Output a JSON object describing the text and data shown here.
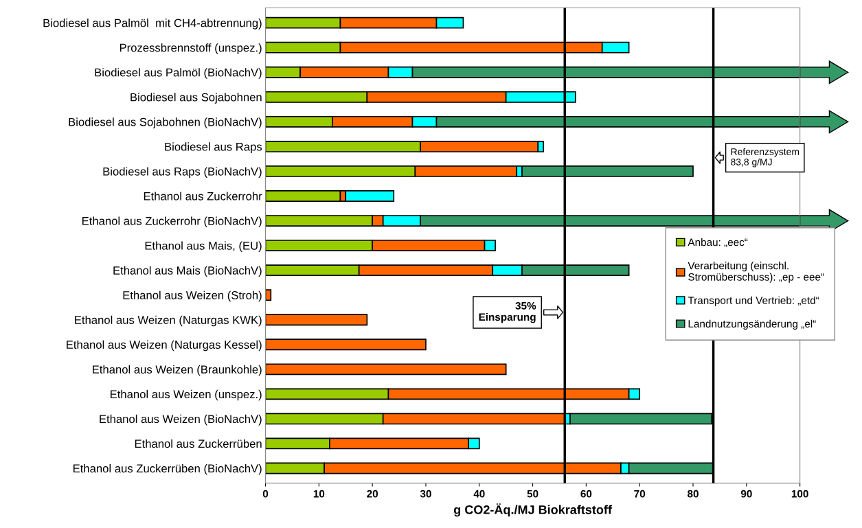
{
  "chart_data": {
    "type": "bar",
    "orientation": "horizontal",
    "stacked": true,
    "xlabel": "g CO2-Äq./MJ Biokraftstoff",
    "categories": [
      "Biodiesel aus Palmöl  mit CH4-abtrennung)",
      "Prozessbrennstoff (unspez.)",
      "Biodiesel aus Palmöl (BioNachV)",
      "Biodiesel aus Sojabohnen",
      "Biodiesel aus Sojabohnen (BioNachV)",
      "Biodiesel aus Raps",
      "Biodiesel aus Raps (BioNachV)",
      "Ethanol aus Zuckerrohr",
      "Ethanol aus Zuckerrohr (BioNachV)",
      "Ethanol aus Mais, (EU)",
      "Ethanol aus Mais (BioNachV)",
      "Ethanol aus Weizen (Stroh)",
      "Ethanol aus Weizen (Naturgas KWK)",
      "Ethanol aus Weizen (Naturgas Kessel)",
      "Ethanol aus Weizen (Braunkohle)",
      "Ethanol aus Weizen (unspez.)",
      "Ethanol aus Weizen (BioNachV)",
      "Ethanol aus Zuckerrüben",
      "Ethanol aus Zuckerrüben (BioNachV)"
    ],
    "series": [
      {
        "name": "Anbau: „eec“",
        "color": "#99cc00",
        "values": [
          14,
          14,
          6.5,
          19,
          12.5,
          29,
          28,
          14,
          20,
          20,
          17.5,
          0,
          0,
          0,
          0,
          23,
          22,
          12,
          11
        ]
      },
      {
        "name": "Verarbeitung (einschl.\nStromüberschuss): „ep - eee“",
        "color": "#ff6600",
        "values": [
          18,
          49,
          16.5,
          26,
          15,
          22,
          19,
          1,
          2,
          21,
          25,
          1,
          19,
          30,
          45,
          45,
          34,
          26,
          55.5
        ]
      },
      {
        "name": "Transport und Vertrieb: „etd“",
        "color": "#00ffff",
        "values": [
          5,
          5,
          4.5,
          13,
          4.5,
          1,
          1,
          9,
          7,
          2,
          5.5,
          0,
          0,
          0,
          0,
          2,
          1,
          2,
          1.5
        ]
      },
      {
        "name": "Landnutzungsänderung „el“",
        "color": "#339966",
        "values": [
          0,
          0,
          72.5,
          0,
          68,
          0,
          32,
          0,
          71,
          0,
          20,
          0,
          0,
          0,
          0,
          0,
          26.5,
          0,
          15.8
        ]
      }
    ],
    "xlim": [
      0,
      100
    ],
    "xticks": [
      0,
      10,
      20,
      30,
      40,
      50,
      60,
      70,
      80,
      90,
      100
    ],
    "ref_lines": [
      {
        "axis": "x",
        "value": 56,
        "label": "35%\nEinsparung",
        "color": "#000000"
      },
      {
        "axis": "x",
        "value": 83.8,
        "label": "Referenzsystem\n83,8 g/MJ",
        "color": "#000000"
      }
    ],
    "legend": "bottom right",
    "grid": false
  }
}
